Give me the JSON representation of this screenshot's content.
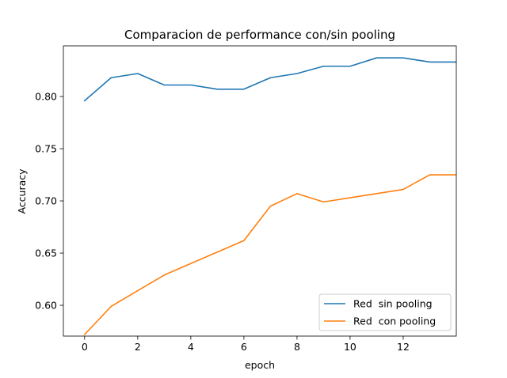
{
  "chart_data": {
    "type": "line",
    "title": "Comparacion de performance con/sin pooling",
    "xlabel": "epoch",
    "ylabel": "Accuracy",
    "xlim": [
      -0.8,
      14
    ],
    "ylim": [
      0.5705,
      0.8485
    ],
    "xticks": [
      0,
      2,
      4,
      6,
      8,
      10,
      12
    ],
    "yticks": [
      0.6,
      0.65,
      0.7,
      0.75,
      0.8
    ],
    "xtick_labels": [
      "0",
      "2",
      "4",
      "6",
      "8",
      "10",
      "12"
    ],
    "ytick_labels": [
      "0.60",
      "0.65",
      "0.70",
      "0.75",
      "0.80"
    ],
    "grid": false,
    "legend_position": "lower-right",
    "x": [
      0,
      1,
      2,
      3,
      4,
      5,
      6,
      7,
      8,
      9,
      10,
      11,
      12,
      13,
      14
    ],
    "series": [
      {
        "name": "Red  sin pooling",
        "color": "#1f77b4",
        "values": [
          0.796,
          0.818,
          0.822,
          0.811,
          0.811,
          0.807,
          0.807,
          0.818,
          0.822,
          0.829,
          0.829,
          0.837,
          0.837,
          0.833,
          0.833
        ]
      },
      {
        "name": "Red  con pooling",
        "color": "#ff7f0e",
        "values": [
          0.572,
          0.599,
          0.614,
          0.629,
          0.64,
          0.651,
          0.662,
          0.695,
          0.707,
          0.699,
          0.703,
          0.707,
          0.711,
          0.725,
          0.725
        ]
      }
    ]
  }
}
